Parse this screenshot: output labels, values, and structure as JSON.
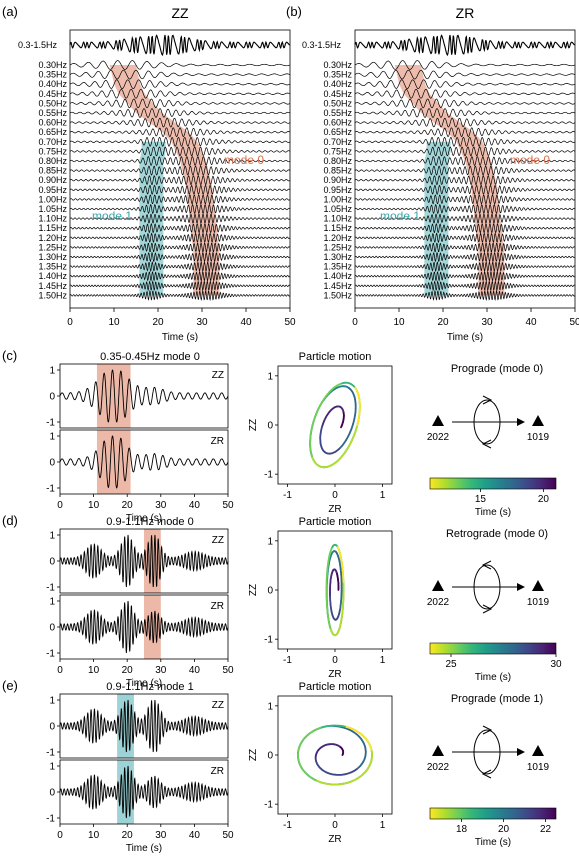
{
  "panels": {
    "a": {
      "letter": "(a)",
      "title": "ZZ",
      "broadband_label": "0.3-1.5Hz",
      "freq_labels": [
        "0.30Hz",
        "0.35Hz",
        "0.40Hz",
        "0.45Hz",
        "0.50Hz",
        "0.55Hz",
        "0.60Hz",
        "0.65Hz",
        "0.70Hz",
        "0.75Hz",
        "0.80Hz",
        "0.85Hz",
        "0.90Hz",
        "0.95Hz",
        "1.00Hz",
        "1.05Hz",
        "1.10Hz",
        "1.15Hz",
        "1.20Hz",
        "1.25Hz",
        "1.30Hz",
        "1.35Hz",
        "1.40Hz",
        "1.45Hz",
        "1.50Hz"
      ],
      "mode0_label": "mode 0",
      "mode1_label": "mode 1",
      "xlabel": "Time (s)",
      "xticks": [
        "0",
        "10",
        "20",
        "30",
        "40",
        "50"
      ]
    },
    "b": {
      "letter": "(b)",
      "title": "ZR",
      "broadband_label": "0.3-1.5Hz",
      "freq_labels": [
        "0.30Hz",
        "0.35Hz",
        "0.40Hz",
        "0.45Hz",
        "0.50Hz",
        "0.55Hz",
        "0.60Hz",
        "0.65Hz",
        "0.70Hz",
        "0.75Hz",
        "0.80Hz",
        "0.85Hz",
        "0.90Hz",
        "0.95Hz",
        "1.00Hz",
        "1.05Hz",
        "1.10Hz",
        "1.15Hz",
        "1.20Hz",
        "1.25Hz",
        "1.30Hz",
        "1.35Hz",
        "1.40Hz",
        "1.45Hz",
        "1.50Hz"
      ],
      "mode0_label": "mode 0",
      "mode1_label": "mode 1",
      "xlabel": "Time (s)",
      "xticks": [
        "0",
        "10",
        "20",
        "30",
        "40",
        "50"
      ]
    },
    "rows": [
      {
        "letter": "(c)",
        "wave_title": "0.35-0.45Hz mode 0",
        "zz_label": "ZZ",
        "zr_label": "ZR",
        "wave_yticks": [
          "1",
          "0",
          "-1"
        ],
        "xticks": [
          "0",
          "10",
          "20",
          "30",
          "40",
          "50"
        ],
        "xlabel": "Time (s)",
        "pm_title": "Particle motion",
        "pm_xlabel": "ZR",
        "pm_ylabel": "ZZ",
        "pm_xticks": [
          "-1",
          "0",
          "1"
        ],
        "pm_yticks": [
          "1",
          "0",
          "-1"
        ],
        "motion_title": "Prograde (mode 0)",
        "station_left": "2022",
        "station_right": "1019",
        "cbar_ticks": [
          "15",
          "20"
        ],
        "cbar_label": "Time (s)"
      },
      {
        "letter": "(d)",
        "wave_title": "0.9-1.1Hz mode 0",
        "zz_label": "ZZ",
        "zr_label": "ZR",
        "wave_yticks": [
          "1",
          "0",
          "-1"
        ],
        "xticks": [
          "0",
          "10",
          "20",
          "30",
          "40",
          "50"
        ],
        "xlabel": "Time (s)",
        "pm_title": "Particle motion",
        "pm_xlabel": "ZR",
        "pm_ylabel": "ZZ",
        "pm_xticks": [
          "-1",
          "0",
          "1"
        ],
        "pm_yticks": [
          "1",
          "0",
          "-1"
        ],
        "motion_title": "Retrograde (mode 0)",
        "station_left": "2022",
        "station_right": "1019",
        "cbar_ticks": [
          "25",
          "30"
        ],
        "cbar_label": "Time (s)"
      },
      {
        "letter": "(e)",
        "wave_title": "0.9-1.1Hz mode 1",
        "zz_label": "ZZ",
        "zr_label": "ZR",
        "wave_yticks": [
          "1",
          "0",
          "-1"
        ],
        "xticks": [
          "0",
          "10",
          "20",
          "30",
          "40",
          "50"
        ],
        "xlabel": "Time (s)",
        "pm_title": "Particle motion",
        "pm_xlabel": "ZR",
        "pm_ylabel": "ZZ",
        "pm_xticks": [
          "-1",
          "0",
          "1"
        ],
        "pm_yticks": [
          "1",
          "0",
          "-1"
        ],
        "motion_title": "Prograde (mode 1)",
        "station_left": "2022",
        "station_right": "1019",
        "cbar_ticks": [
          "18",
          "20",
          "22"
        ],
        "cbar_label": "Time (s)"
      }
    ]
  },
  "colors": {
    "mode0": "#e6a08a",
    "mode1": "#7cc4c8",
    "mode0_text": "#d9704d",
    "mode1_text": "#3aa6a9",
    "viridis": [
      "#fde725",
      "#b5de2b",
      "#6ece58",
      "#35b779",
      "#1f9e89",
      "#26828e",
      "#31688e",
      "#3e4989",
      "#482878",
      "#440154"
    ]
  },
  "chart_data": [
    {
      "type": "line",
      "panel": "a",
      "title": "ZZ",
      "xlabel": "Time (s)",
      "xlim": [
        0,
        50
      ],
      "series_frequencies_hz": [
        0.3,
        0.35,
        0.4,
        0.45,
        0.5,
        0.55,
        0.6,
        0.65,
        0.7,
        0.75,
        0.8,
        0.85,
        0.9,
        0.95,
        1.0,
        1.05,
        1.1,
        1.15,
        1.2,
        1.25,
        1.3,
        1.35,
        1.4,
        1.45,
        1.5
      ],
      "mode0_time_s": [
        12,
        12.5,
        13,
        14,
        16,
        18,
        21,
        24,
        26,
        27,
        28,
        28.5,
        29,
        29.5,
        29.5,
        30,
        30,
        30.5,
        30.5,
        31,
        31,
        31,
        31,
        31,
        31
      ],
      "mode1_time_s": [
        null,
        null,
        null,
        null,
        null,
        null,
        null,
        null,
        19,
        19,
        18.5,
        18.5,
        18.5,
        18.5,
        18.5,
        18.5,
        18.5,
        18.5,
        18.5,
        18.5,
        18.5,
        18.5,
        18.5,
        18.5,
        18.5
      ]
    },
    {
      "type": "line",
      "panel": "b",
      "title": "ZR",
      "xlabel": "Time (s)",
      "xlim": [
        0,
        50
      ],
      "series_frequencies_hz": [
        0.3,
        0.35,
        0.4,
        0.45,
        0.5,
        0.55,
        0.6,
        0.65,
        0.7,
        0.75,
        0.8,
        0.85,
        0.9,
        0.95,
        1.0,
        1.05,
        1.1,
        1.15,
        1.2,
        1.25,
        1.3,
        1.35,
        1.4,
        1.45,
        1.5
      ],
      "mode0_time_s": [
        12,
        12.5,
        13,
        14,
        16,
        18,
        21,
        24,
        26,
        27,
        28,
        28.5,
        29,
        29.5,
        29.5,
        30,
        30,
        30.5,
        30.5,
        31,
        31,
        31,
        31,
        31,
        31
      ],
      "mode1_time_s": [
        null,
        null,
        null,
        null,
        null,
        null,
        null,
        null,
        19,
        19,
        18.5,
        18.5,
        18.5,
        18.5,
        18.5,
        18.5,
        18.5,
        18.5,
        18.5,
        18.5,
        18.5,
        18.5,
        18.5,
        18.5,
        18.5
      ]
    },
    {
      "type": "line",
      "panel": "c",
      "title": "0.35-0.45Hz mode 0",
      "xlabel": "Time (s)",
      "xlim": [
        0,
        50
      ],
      "ylim": [
        -1,
        1
      ],
      "window_s": [
        11,
        21
      ],
      "pm_colorbar_range_s": [
        11,
        21
      ]
    },
    {
      "type": "line",
      "panel": "d",
      "title": "0.9-1.1Hz mode 0",
      "xlabel": "Time (s)",
      "xlim": [
        0,
        50
      ],
      "ylim": [
        -1,
        1
      ],
      "window_s": [
        25,
        30
      ],
      "pm_colorbar_range_s": [
        24,
        30
      ]
    },
    {
      "type": "line",
      "panel": "e",
      "title": "0.9-1.1Hz mode 1",
      "xlabel": "Time (s)",
      "xlim": [
        0,
        50
      ],
      "ylim": [
        -1,
        1
      ],
      "window_s": [
        17,
        22
      ],
      "pm_colorbar_range_s": [
        16.5,
        22.5
      ]
    }
  ]
}
